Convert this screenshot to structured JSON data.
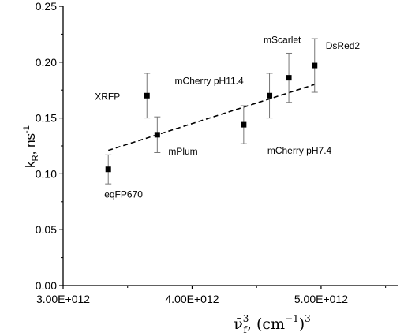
{
  "chart_data": {
    "type": "scatter",
    "title": "",
    "xlabel_parts": {
      "base": "ν̄",
      "sub": "f",
      "sup": "3",
      "units": ", (cm",
      "units_sup": "−1",
      "units_close": ")",
      "units_pow": "3"
    },
    "ylabel_parts": {
      "base": "k",
      "sub": "R",
      "mid": ", ns",
      "sup": "-1"
    },
    "xlim": [
      3000000000000.0,
      5600000000000.0
    ],
    "ylim": [
      0.0,
      0.25
    ],
    "x_ticks": [
      3000000000000.0,
      4000000000000.0,
      5000000000000.0
    ],
    "x_tick_labels": [
      "3.00E+012",
      "4.00E+012",
      "5.00E+012"
    ],
    "y_ticks": [
      0.0,
      0.05,
      0.1,
      0.15,
      0.2,
      0.25
    ],
    "y_tick_labels": [
      "0.00",
      "0.05",
      "0.10",
      "0.15",
      "0.20",
      "0.25"
    ],
    "grid": false,
    "points": [
      {
        "label": "eqFP670",
        "x": 3350000000000.0,
        "y": 0.104,
        "err": 0.013
      },
      {
        "label": "XRFP",
        "x": 3650000000000.0,
        "y": 0.17,
        "err": 0.02
      },
      {
        "label": "mPlum",
        "x": 3730000000000.0,
        "y": 0.135,
        "err": 0.016
      },
      {
        "label": "mCherry pH7.4",
        "x": 4400000000000.0,
        "y": 0.144,
        "err": 0.017
      },
      {
        "label": "mCherry pH11.4",
        "x": 4600000000000.0,
        "y": 0.17,
        "err": 0.02
      },
      {
        "label": "mScarlet",
        "x": 4750000000000.0,
        "y": 0.186,
        "err": 0.022
      },
      {
        "label": "DsRed2",
        "x": 4950000000000.0,
        "y": 0.197,
        "err": 0.024
      }
    ],
    "fit_line": {
      "style": "dashed",
      "x": [
        3350000000000.0,
        4950000000000.0
      ],
      "y": [
        0.121,
        0.18
      ]
    }
  }
}
